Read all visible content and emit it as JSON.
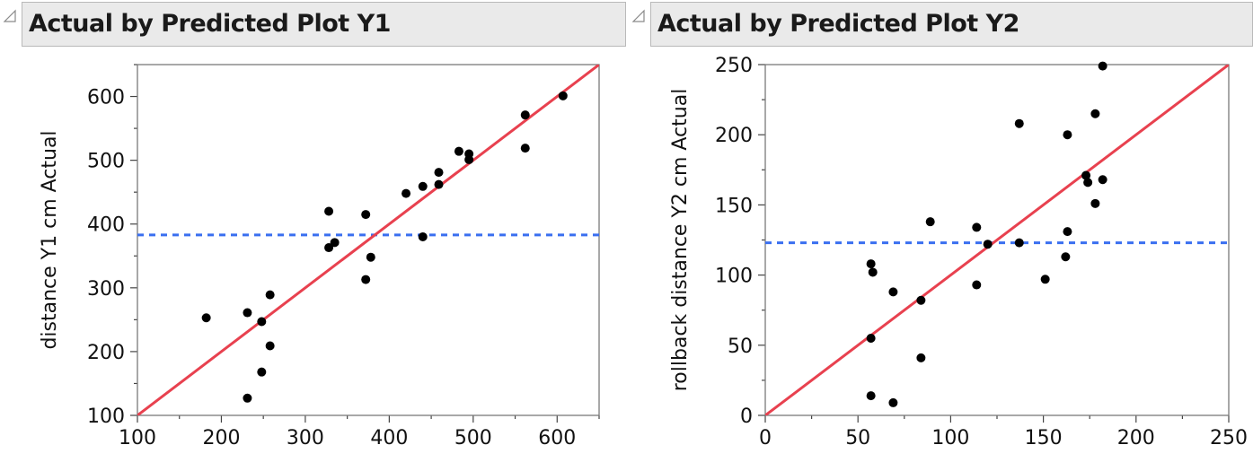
{
  "panels": [
    {
      "title": "Actual by Predicted Plot Y1"
    },
    {
      "title": "Actual by Predicted Plot Y2"
    }
  ],
  "chart_data": [
    {
      "type": "scatter",
      "title": "Actual by Predicted Plot Y1",
      "xlabel": "",
      "ylabel": "distance Y1 cm Actual",
      "xlim": [
        100,
        650
      ],
      "ylim": [
        100,
        650
      ],
      "xticks": [
        100,
        200,
        300,
        400,
        500,
        600
      ],
      "yticks": [
        100,
        200,
        300,
        400,
        500,
        600
      ],
      "mean_line": 383,
      "fit_line": [
        [
          100,
          100
        ],
        [
          650,
          650
        ]
      ],
      "points": [
        [
          182,
          253
        ],
        [
          231,
          261
        ],
        [
          231,
          127
        ],
        [
          248,
          247
        ],
        [
          248,
          168
        ],
        [
          258,
          289
        ],
        [
          258,
          209
        ],
        [
          328,
          363
        ],
        [
          328,
          420
        ],
        [
          335,
          371
        ],
        [
          372,
          415
        ],
        [
          372,
          313
        ],
        [
          378,
          348
        ],
        [
          420,
          448
        ],
        [
          440,
          459
        ],
        [
          440,
          380
        ],
        [
          459,
          481
        ],
        [
          459,
          462
        ],
        [
          483,
          514
        ],
        [
          495,
          510
        ],
        [
          495,
          501
        ],
        [
          562,
          571
        ],
        [
          562,
          519
        ],
        [
          607,
          601
        ]
      ],
      "colors": {
        "points": "#000000",
        "fit": "#e8414f",
        "mean": "#3a6ff0"
      }
    },
    {
      "type": "scatter",
      "title": "Actual by Predicted Plot Y2",
      "xlabel": "",
      "ylabel": "rollback distance Y2 cm Actual",
      "xlim": [
        0,
        250
      ],
      "ylim": [
        0,
        250
      ],
      "xticks": [
        0,
        50,
        100,
        150,
        200,
        250
      ],
      "yticks": [
        0,
        50,
        100,
        150,
        200,
        250
      ],
      "mean_line": 123,
      "fit_line": [
        [
          0,
          0
        ],
        [
          250,
          250
        ]
      ],
      "points": [
        [
          57,
          108
        ],
        [
          58,
          102
        ],
        [
          57,
          55
        ],
        [
          57,
          14
        ],
        [
          69,
          88
        ],
        [
          69,
          9
        ],
        [
          84,
          82
        ],
        [
          84,
          41
        ],
        [
          89,
          138
        ],
        [
          114,
          134
        ],
        [
          114,
          93
        ],
        [
          120,
          122
        ],
        [
          137,
          208
        ],
        [
          137,
          123
        ],
        [
          151,
          97
        ],
        [
          163,
          200
        ],
        [
          163,
          131
        ],
        [
          162,
          113
        ],
        [
          173,
          171
        ],
        [
          174,
          166
        ],
        [
          178,
          215
        ],
        [
          178,
          151
        ],
        [
          182,
          249
        ],
        [
          182,
          168
        ]
      ],
      "colors": {
        "points": "#000000",
        "fit": "#e8414f",
        "mean": "#3a6ff0"
      }
    }
  ]
}
